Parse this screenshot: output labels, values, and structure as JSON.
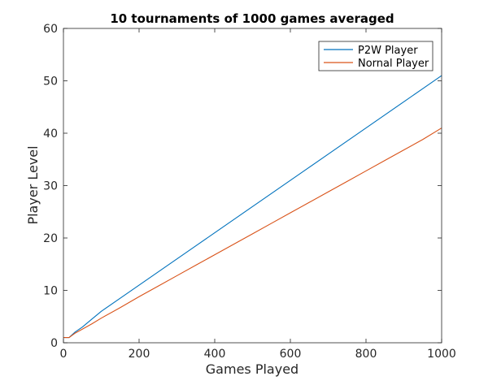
{
  "chart_data": {
    "type": "line",
    "title": "10 tournaments of 1000 games averaged",
    "xlabel": "Games Played",
    "ylabel": "Player Level",
    "xlim": [
      0,
      1000
    ],
    "ylim": [
      0,
      60
    ],
    "xticks": [
      0,
      200,
      400,
      600,
      800,
      1000
    ],
    "yticks": [
      0,
      10,
      20,
      30,
      40,
      50,
      60
    ],
    "grid": false,
    "legend_position": "top-right",
    "series": [
      {
        "name": "P2W Player",
        "color": "#0072BD",
        "x": [
          0,
          15,
          30,
          50,
          75,
          100,
          150,
          200,
          250,
          300,
          350,
          400,
          450,
          500,
          550,
          600,
          650,
          700,
          750,
          800,
          850,
          900,
          950,
          1000
        ],
        "y": [
          1,
          1,
          2,
          3,
          4.5,
          6,
          8.5,
          11,
          13.5,
          16,
          18.5,
          21,
          23.5,
          26,
          28.5,
          31,
          33.5,
          36,
          38.5,
          41,
          43.5,
          46,
          48.5,
          51
        ]
      },
      {
        "name": "Nornal Player",
        "color": "#D95319",
        "x": [
          0,
          15,
          30,
          50,
          75,
          100,
          150,
          200,
          250,
          300,
          350,
          400,
          450,
          500,
          550,
          600,
          650,
          700,
          750,
          800,
          850,
          900,
          950,
          1000
        ],
        "y": [
          1,
          1,
          1.8,
          2.6,
          3.6,
          4.7,
          6.7,
          8.8,
          10.8,
          12.8,
          14.8,
          16.8,
          18.8,
          20.8,
          22.8,
          24.8,
          26.8,
          28.8,
          30.8,
          32.8,
          34.8,
          36.8,
          38.8,
          41
        ]
      }
    ]
  }
}
